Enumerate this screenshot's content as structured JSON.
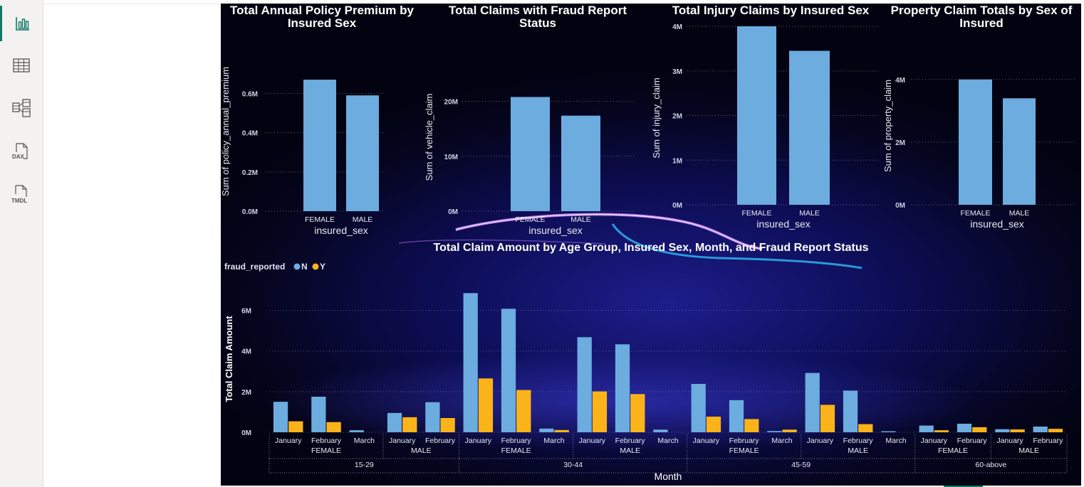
{
  "nav": [
    {
      "icon": "report-view-icon",
      "active": true
    },
    {
      "icon": "table-view-icon",
      "active": false
    },
    {
      "icon": "model-view-icon",
      "active": false
    },
    {
      "icon": "dax-query-view-icon",
      "label": "DAX",
      "active": false
    },
    {
      "icon": "tmdl-view-icon",
      "label": "TMDL",
      "active": false
    }
  ],
  "colors": {
    "bar": "#6cacdf",
    "n": "#6cacdf",
    "y": "#fbb31a",
    "accent": "#117865"
  },
  "chart_data": [
    {
      "type": "bar",
      "title": "Total Annual Policy Premium by Insured Sex",
      "title_lines": [
        "Total Annual Policy Premium by",
        "Insured Sex"
      ],
      "xlabel": "insured_sex",
      "ylabel": "Sum of policy_annual_premium",
      "categories": [
        "FEMALE",
        "MALE"
      ],
      "values": [
        670000,
        590000
      ],
      "ylim": [
        0,
        750000
      ],
      "yticks": [
        0,
        200000,
        400000,
        600000
      ],
      "ytick_labels": [
        "0.0M",
        "0.2M",
        "0.4M",
        "0.6M"
      ],
      "grid": true
    },
    {
      "type": "bar",
      "title": "Total Claims with Fraud Report Status",
      "title_lines": [
        "Total Claims with Fraud Report",
        "Status"
      ],
      "xlabel": "insured_sex",
      "ylabel": "Sum of vehicle_claim",
      "categories": [
        "FEMALE",
        "MALE"
      ],
      "values": [
        20800000,
        17400000
      ],
      "ylim": [
        0,
        25000000
      ],
      "yticks": [
        0,
        10000000,
        20000000
      ],
      "ytick_labels": [
        "0M",
        "10M",
        "20M"
      ],
      "grid": true
    },
    {
      "type": "bar",
      "title": "Total Injury Claims by Insured Sex",
      "title_lines": [
        "Total Injury Claims by Insured Sex"
      ],
      "xlabel": "insured_sex",
      "ylabel": "Sum of injury_claim",
      "categories": [
        "FEMALE",
        "MALE"
      ],
      "values": [
        4000000,
        3450000
      ],
      "ylim": [
        0,
        4000000
      ],
      "yticks": [
        0,
        1000000,
        2000000,
        3000000,
        4000000
      ],
      "ytick_labels": [
        "0M",
        "1M",
        "2M",
        "3M",
        "4M"
      ],
      "grid": true
    },
    {
      "type": "bar",
      "title": "Property Claim Totals by Sex of Insured",
      "title_lines": [
        "Property Claim Totals by Sex of",
        "Insured"
      ],
      "xlabel": "insured_sex",
      "ylabel": "Sum of property_claim",
      "categories": [
        "FEMALE",
        "MALE"
      ],
      "values": [
        4000000,
        3400000
      ],
      "ylim": [
        0,
        4200000
      ],
      "yticks": [
        0,
        2000000,
        4000000
      ],
      "ytick_labels": [
        "0M",
        "2M",
        "4M"
      ],
      "grid": true
    },
    {
      "type": "bar",
      "title": "Total Claim Amount by Age Group, Insured Sex, Month, and Fraud Report Status",
      "xlabel": "Month",
      "ylabel": "Total Claim Amount",
      "legend_title": "fraud_reported",
      "legend_position": "top-left",
      "ylim": [
        0,
        7000000
      ],
      "yticks": [
        0,
        2000000,
        4000000,
        6000000
      ],
      "ytick_labels": [
        "0M",
        "2M",
        "4M",
        "6M"
      ],
      "grid": true,
      "categories": [
        {
          "age": "15-29",
          "sex": "FEMALE",
          "month": "January"
        },
        {
          "age": "15-29",
          "sex": "FEMALE",
          "month": "February"
        },
        {
          "age": "15-29",
          "sex": "FEMALE",
          "month": "March"
        },
        {
          "age": "15-29",
          "sex": "MALE",
          "month": "January"
        },
        {
          "age": "15-29",
          "sex": "MALE",
          "month": "February"
        },
        {
          "age": "30-44",
          "sex": "FEMALE",
          "month": "January"
        },
        {
          "age": "30-44",
          "sex": "FEMALE",
          "month": "February"
        },
        {
          "age": "30-44",
          "sex": "FEMALE",
          "month": "March"
        },
        {
          "age": "30-44",
          "sex": "MALE",
          "month": "January"
        },
        {
          "age": "30-44",
          "sex": "MALE",
          "month": "February"
        },
        {
          "age": "30-44",
          "sex": "MALE",
          "month": "March"
        },
        {
          "age": "45-59",
          "sex": "FEMALE",
          "month": "January"
        },
        {
          "age": "45-59",
          "sex": "FEMALE",
          "month": "February"
        },
        {
          "age": "45-59",
          "sex": "FEMALE",
          "month": "March"
        },
        {
          "age": "45-59",
          "sex": "MALE",
          "month": "January"
        },
        {
          "age": "45-59",
          "sex": "MALE",
          "month": "February"
        },
        {
          "age": "45-59",
          "sex": "MALE",
          "month": "March"
        },
        {
          "age": "60-above",
          "sex": "FEMALE",
          "month": "January"
        },
        {
          "age": "60-above",
          "sex": "FEMALE",
          "month": "February"
        },
        {
          "age": "60-above",
          "sex": "MALE",
          "month": "January"
        },
        {
          "age": "60-above",
          "sex": "MALE",
          "month": "February"
        }
      ],
      "series": [
        {
          "name": "N",
          "values": [
            1500000,
            1750000,
            100000,
            950000,
            1480000,
            6850000,
            6080000,
            180000,
            4680000,
            4330000,
            130000,
            2380000,
            1580000,
            60000,
            2920000,
            2050000,
            50000,
            330000,
            420000,
            150000,
            280000
          ]
        },
        {
          "name": "Y",
          "values": [
            540000,
            500000,
            0,
            740000,
            700000,
            2650000,
            2080000,
            110000,
            2010000,
            1880000,
            0,
            770000,
            650000,
            130000,
            1350000,
            400000,
            0,
            100000,
            250000,
            140000,
            170000
          ]
        }
      ]
    }
  ]
}
